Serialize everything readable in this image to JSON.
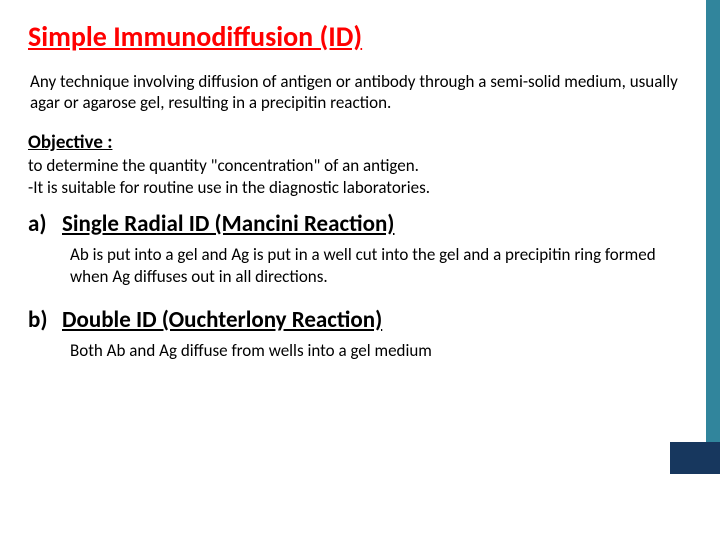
{
  "title": "Simple Immunodiffusion (ID)",
  "definition": "Any technique involving diffusion of antigen or antibody through a semi-solid medium, usually agar or agarose gel, resulting in a precipitin reaction.",
  "objective": {
    "label": "Objective :",
    "body": "to determine the quantity \"concentration\" of an antigen.\n-It is suitable for routine use in the diagnostic laboratories."
  },
  "items": [
    {
      "letter": "a)",
      "heading": "Single Radial ID (Mancini Reaction)",
      "body": "Ab is put into a gel and Ag is put in a well cut into the gel and a precipitin ring formed when Ag diffuses out in all directions."
    },
    {
      "letter": "b)",
      "heading": "Double ID (Ouchterlony Reaction)",
      "body": "Both Ab and Ag diffuse from wells into a gel medium"
    }
  ],
  "accent": {
    "top_color": "#31859c",
    "bottom_color": "#17375e"
  }
}
